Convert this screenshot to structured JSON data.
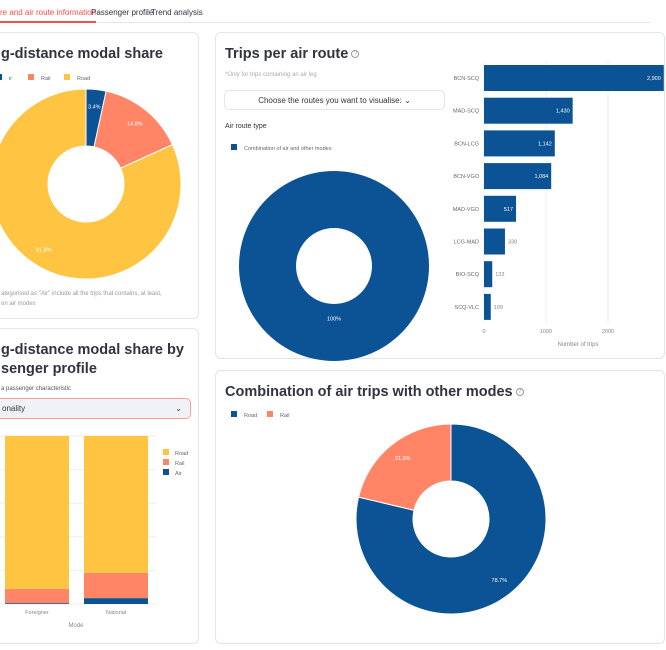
{
  "tabs": [
    "re and air route information",
    "Passenger profile",
    "Trend analysis"
  ],
  "modal_share": {
    "title": "g-distance modal share",
    "legend": [
      "ir",
      "Rail",
      "Road"
    ],
    "note_1": "ategorised as \"Air\" include all the trips that contains, at least,",
    "note_2": "on air modes",
    "chart_data": {
      "type": "pie",
      "labels": [
        "Air",
        "Rail",
        "Road"
      ],
      "values": [
        3.4,
        14.8,
        81.8
      ],
      "value_labels": [
        "3.4%",
        "14.8%",
        "81.8%"
      ]
    }
  },
  "profile": {
    "title_1": "g-distance modal share by",
    "title_2": "senger profile",
    "select_label": "a passenger characteristic",
    "select_value": "onality",
    "xlabel": "Mode",
    "legend": [
      "Road",
      "Rail",
      "Air"
    ],
    "chart_data": {
      "type": "bar",
      "stacked": true,
      "categories": [
        "Foreigner",
        "National"
      ],
      "series": [
        {
          "name": "Air",
          "values": [
            0.5,
            3.5
          ]
        },
        {
          "name": "Rail",
          "values": [
            8.5,
            15
          ]
        },
        {
          "name": "Road",
          "values": [
            91,
            81.5
          ]
        }
      ],
      "ylim": [
        0,
        100
      ]
    }
  },
  "routes": {
    "title": "Trips per air route",
    "note": "*Only for trips containing an air leg",
    "select": "Choose the routes you want to visualise:",
    "type_label": "Air route type",
    "legend": [
      "Combination of air and other modes"
    ],
    "donut": {
      "type": "pie",
      "labels": [
        "Combination of air and other modes"
      ],
      "values": [
        100
      ],
      "value_labels": [
        "100%"
      ]
    },
    "chart_data": {
      "type": "bar",
      "orientation": "horizontal",
      "categories": [
        "BCN-SCQ",
        "MAD-SCQ",
        "BCN-LCG",
        "BCN-VGO",
        "MAD-VGO",
        "LCG-MAD",
        "BIO-SCQ",
        "SCQ-VLC"
      ],
      "values": [
        2900,
        1430,
        1142,
        1084,
        517,
        338,
        133,
        109
      ],
      "value_labels": [
        "2,900",
        "1,430",
        "1,142",
        "1,084",
        "517",
        "338",
        "133",
        "109"
      ],
      "xlabel": "Number of trips",
      "xticks": [
        "0",
        "1000",
        "2000"
      ]
    }
  },
  "combination": {
    "title": "Combination of air trips with other modes",
    "legend": [
      "Road",
      "Rail"
    ],
    "chart_data": {
      "type": "pie",
      "labels": [
        "Road",
        "Rail"
      ],
      "values": [
        78.7,
        21.3
      ],
      "value_labels": [
        "78.7%",
        "21.3%"
      ]
    }
  },
  "colors": {
    "air": "#0b5394",
    "rail": "#ff8566",
    "road": "#ffc542"
  }
}
